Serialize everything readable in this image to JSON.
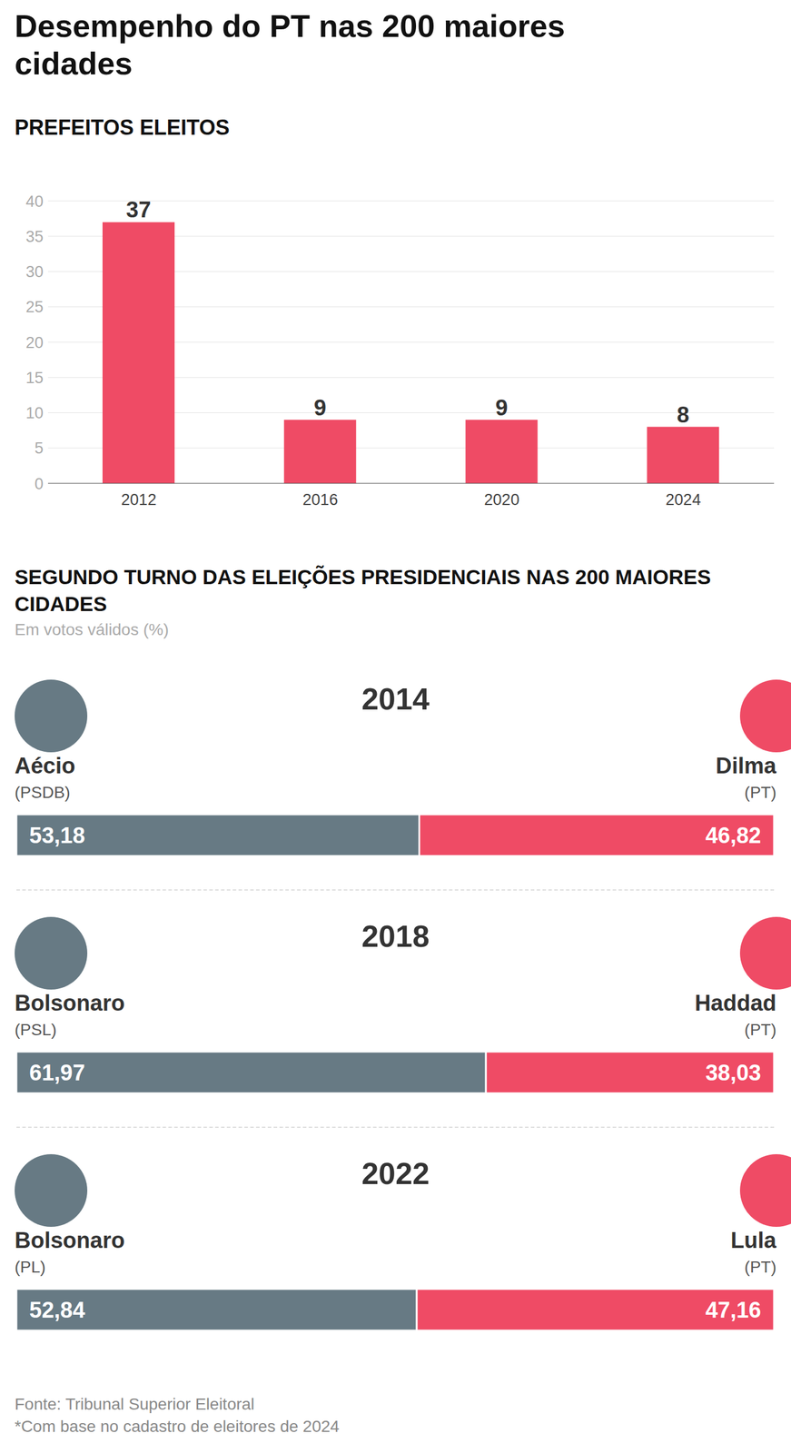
{
  "title": "Desempenho do PT nas 200 maiores cidades",
  "section": {
    "title": "SEGUNDO TURNO DAS ELEIÇÕES PRESIDENCIAIS NAS 200 MAIORES CIDADES",
    "subtitle": "Em votos válidos (%)"
  },
  "source": "Fonte: Tribunal Superior Eleitoral",
  "note": "*Com base no cadastro de eleitores de 2024",
  "chart_data": [
    {
      "type": "bar",
      "title": "PREFEITOS ELEITOS",
      "categories": [
        "2012",
        "2016",
        "2020",
        "2024"
      ],
      "values": [
        37,
        9,
        9,
        8
      ],
      "color": "#ef4b65",
      "ylim": [
        0,
        40
      ],
      "yticks": [
        0,
        5,
        10,
        15,
        20,
        25,
        30,
        35,
        40
      ],
      "grid": true,
      "data_labels": true
    },
    {
      "type": "bar",
      "title": "2014",
      "orientation": "horizontal",
      "stacked": true,
      "data_labels": true,
      "tick_labels": false,
      "categories": [
        null
      ],
      "xlim": [
        0,
        100
      ],
      "series": [
        {
          "name": "Aécio",
          "party": "(PSDB)",
          "color": "#677a84",
          "values": [
            53.18
          ],
          "value_labels": [
            "53,18"
          ]
        },
        {
          "name": "Dilma",
          "party": "(PT)",
          "color": "#ef4b65",
          "values": [
            46.82
          ],
          "value_labels": [
            "46,82"
          ]
        }
      ]
    },
    {
      "type": "bar",
      "title": "2018",
      "orientation": "horizontal",
      "stacked": true,
      "data_labels": true,
      "tick_labels": false,
      "categories": [
        null
      ],
      "xlim": [
        0,
        100
      ],
      "series": [
        {
          "name": "Bolsonaro",
          "party": "(PSL)",
          "color": "#677a84",
          "values": [
            61.97
          ],
          "value_labels": [
            "61,97"
          ]
        },
        {
          "name": "Haddad",
          "party": "(PT)",
          "color": "#ef4b65",
          "values": [
            38.03
          ],
          "value_labels": [
            "38,03"
          ]
        }
      ]
    },
    {
      "type": "bar",
      "title": "2022",
      "orientation": "horizontal",
      "stacked": true,
      "data_labels": true,
      "tick_labels": false,
      "categories": [
        null
      ],
      "xlim": [
        0,
        100
      ],
      "series": [
        {
          "name": "Bolsonaro",
          "party": "(PL)",
          "color": "#677a84",
          "values": [
            52.84
          ],
          "value_labels": [
            "52,84"
          ]
        },
        {
          "name": "Lula",
          "party": "(PT)",
          "color": "#ef4b65",
          "values": [
            47.16
          ],
          "value_labels": [
            "47,16"
          ]
        }
      ]
    }
  ]
}
